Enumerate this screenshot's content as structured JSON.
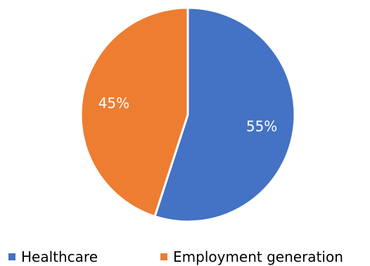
{
  "chart_data": {
    "type": "pie",
    "title": "",
    "slices": [
      {
        "label": "Healthcare",
        "value": 55,
        "display": "55%",
        "color": "#4472C4"
      },
      {
        "label": "Employment generation",
        "value": 45,
        "display": "45%",
        "color": "#ED7D31"
      }
    ],
    "legend_position": "bottom"
  }
}
